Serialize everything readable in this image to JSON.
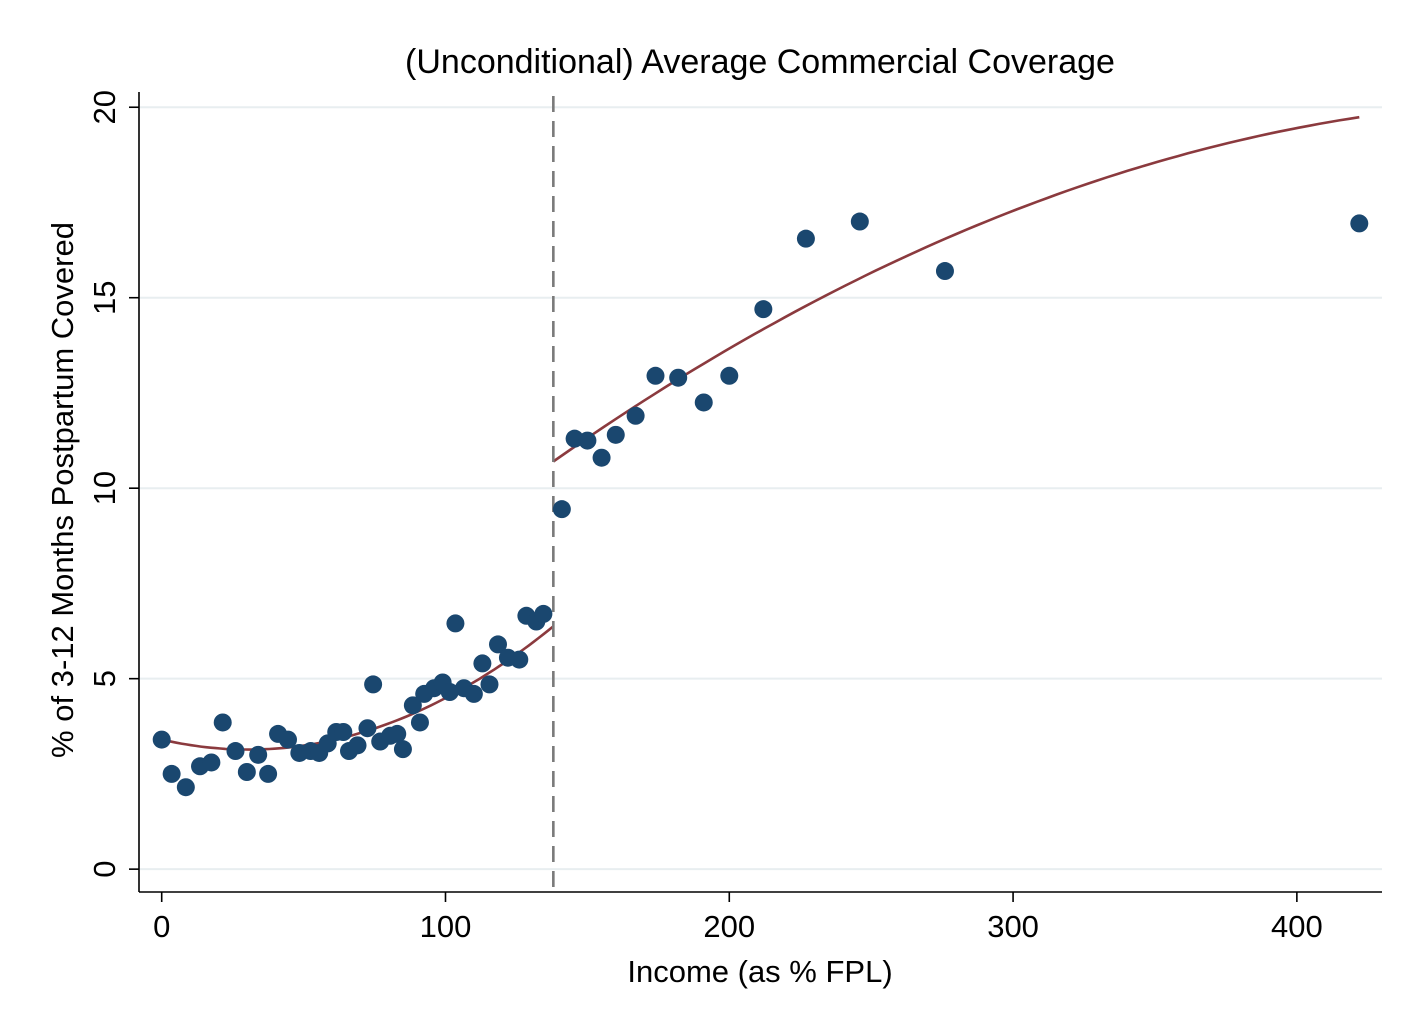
{
  "chart_data": {
    "type": "scatter",
    "title": "(Unconditional) Average Commercial Coverage",
    "xlabel": "Income (as % FPL)",
    "ylabel": "% of 3-12 Months Postpartum Covered",
    "xlim": [
      -8,
      430
    ],
    "ylim": [
      -0.6,
      20.4
    ],
    "xticks": [
      0,
      100,
      200,
      300,
      400
    ],
    "yticks": [
      0,
      5,
      10,
      15,
      20
    ],
    "grid": "horizontal",
    "cutoff": 138,
    "colors": {
      "points": "#1a476f",
      "fit": "#8b3a3e",
      "cutoff": "#7a7a7a",
      "grid": "#e8eef0"
    },
    "points": [
      [
        0,
        3.4
      ],
      [
        3.5,
        2.5
      ],
      [
        8.5,
        2.15
      ],
      [
        13.5,
        2.7
      ],
      [
        17.5,
        2.8
      ],
      [
        21.5,
        3.85
      ],
      [
        26,
        3.1
      ],
      [
        30,
        2.55
      ],
      [
        34,
        3.0
      ],
      [
        37.5,
        2.5
      ],
      [
        41,
        3.55
      ],
      [
        44.5,
        3.4
      ],
      [
        48.5,
        3.05
      ],
      [
        52.5,
        3.1
      ],
      [
        55.5,
        3.05
      ],
      [
        58.5,
        3.3
      ],
      [
        61.5,
        3.6
      ],
      [
        64,
        3.6
      ],
      [
        66,
        3.1
      ],
      [
        69,
        3.25
      ],
      [
        72.5,
        3.7
      ],
      [
        74.5,
        4.85
      ],
      [
        77,
        3.35
      ],
      [
        80.5,
        3.5
      ],
      [
        83,
        3.55
      ],
      [
        85,
        3.15
      ],
      [
        88.5,
        4.3
      ],
      [
        91,
        3.85
      ],
      [
        92.5,
        4.6
      ],
      [
        96,
        4.75
      ],
      [
        99,
        4.9
      ],
      [
        101.5,
        4.65
      ],
      [
        103.5,
        6.45
      ],
      [
        106.5,
        4.75
      ],
      [
        110,
        4.6
      ],
      [
        113,
        5.4
      ],
      [
        115.5,
        4.85
      ],
      [
        118.5,
        5.9
      ],
      [
        122,
        5.55
      ],
      [
        126,
        5.5
      ],
      [
        128.5,
        6.65
      ],
      [
        132,
        6.5
      ],
      [
        134.5,
        6.7
      ],
      [
        141,
        9.45
      ],
      [
        145.5,
        11.3
      ],
      [
        150,
        11.25
      ],
      [
        155,
        10.8
      ],
      [
        160,
        11.4
      ],
      [
        167,
        11.9
      ],
      [
        174,
        12.95
      ],
      [
        182,
        12.9
      ],
      [
        191,
        12.25
      ],
      [
        200,
        12.95
      ],
      [
        212,
        14.7
      ],
      [
        227,
        16.55
      ],
      [
        246,
        17.0
      ],
      [
        276,
        15.7
      ],
      [
        422,
        16.95
      ]
    ],
    "fit_left": {
      "from": 0,
      "to": 138,
      "coefficients": [
        3.4,
        -0.0171,
        0.00028
      ]
    },
    "fit_right": {
      "from": 138,
      "to": 422,
      "coefficients": [
        10.7,
        0.0523,
        -7.21e-05
      ],
      "x0": 138
    }
  }
}
